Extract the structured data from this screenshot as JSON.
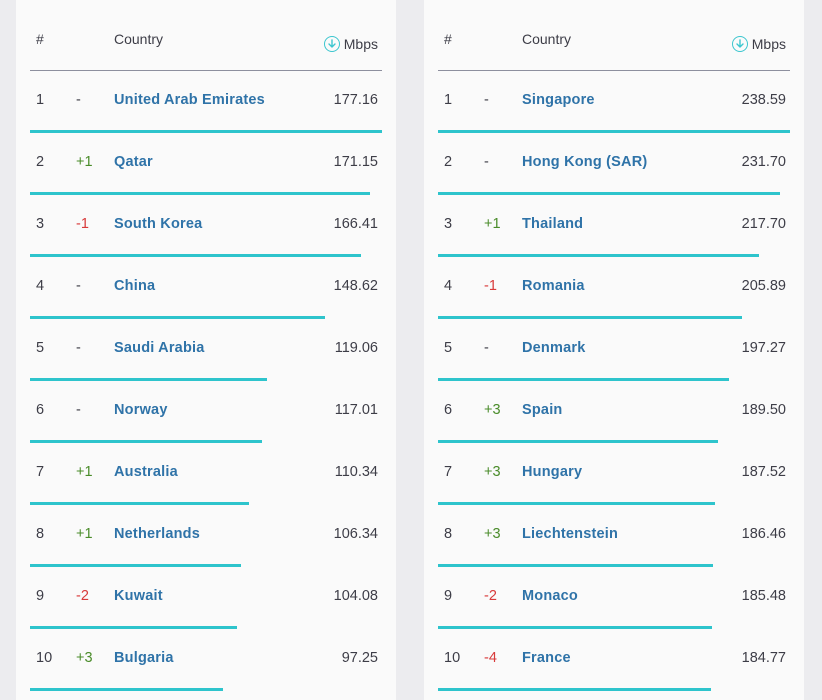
{
  "header": {
    "rank": "#",
    "country": "Country",
    "mbps": "Mbps"
  },
  "icon": "download-circle-icon",
  "accent_color": "#2ec4cc",
  "left": {
    "rows": [
      {
        "rank": "1",
        "change": "-",
        "dir": "none",
        "country": "United Arab Emirates",
        "speed": "177.16"
      },
      {
        "rank": "2",
        "change": "+1",
        "dir": "up",
        "country": "Qatar",
        "speed": "171.15"
      },
      {
        "rank": "3",
        "change": "-1",
        "dir": "down",
        "country": "South Korea",
        "speed": "166.41"
      },
      {
        "rank": "4",
        "change": "-",
        "dir": "none",
        "country": "China",
        "speed": "148.62"
      },
      {
        "rank": "5",
        "change": "-",
        "dir": "none",
        "country": "Saudi Arabia",
        "speed": "119.06"
      },
      {
        "rank": "6",
        "change": "-",
        "dir": "none",
        "country": "Norway",
        "speed": "117.01"
      },
      {
        "rank": "7",
        "change": "+1",
        "dir": "up",
        "country": "Australia",
        "speed": "110.34"
      },
      {
        "rank": "8",
        "change": "+1",
        "dir": "up",
        "country": "Netherlands",
        "speed": "106.34"
      },
      {
        "rank": "9",
        "change": "-2",
        "dir": "down",
        "country": "Kuwait",
        "speed": "104.08"
      },
      {
        "rank": "10",
        "change": "+3",
        "dir": "up",
        "country": "Bulgaria",
        "speed": "97.25"
      }
    ]
  },
  "right": {
    "rows": [
      {
        "rank": "1",
        "change": "-",
        "dir": "none",
        "country": "Singapore",
        "speed": "238.59"
      },
      {
        "rank": "2",
        "change": "-",
        "dir": "none",
        "country": "Hong Kong (SAR)",
        "speed": "231.70"
      },
      {
        "rank": "3",
        "change": "+1",
        "dir": "up",
        "country": "Thailand",
        "speed": "217.70"
      },
      {
        "rank": "4",
        "change": "-1",
        "dir": "down",
        "country": "Romania",
        "speed": "205.89"
      },
      {
        "rank": "5",
        "change": "-",
        "dir": "none",
        "country": "Denmark",
        "speed": "197.27"
      },
      {
        "rank": "6",
        "change": "+3",
        "dir": "up",
        "country": "Spain",
        "speed": "189.50"
      },
      {
        "rank": "7",
        "change": "+3",
        "dir": "up",
        "country": "Hungary",
        "speed": "187.52"
      },
      {
        "rank": "8",
        "change": "+3",
        "dir": "up",
        "country": "Liechtenstein",
        "speed": "186.46"
      },
      {
        "rank": "9",
        "change": "-2",
        "dir": "down",
        "country": "Monaco",
        "speed": "185.48"
      },
      {
        "rank": "10",
        "change": "-4",
        "dir": "down",
        "country": "France",
        "speed": "184.77"
      }
    ]
  }
}
